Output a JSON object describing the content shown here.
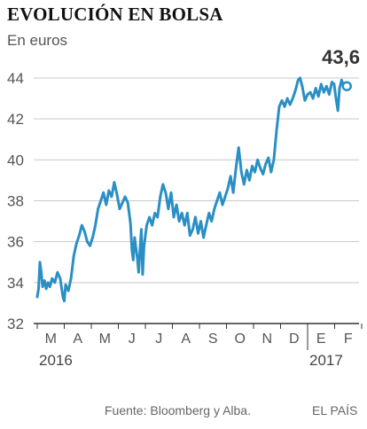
{
  "title": "EVOLUCIÓN EN BOLSA",
  "unit_label": "En euros",
  "footer": {
    "source": "Fuente: Bloomberg y Alba.",
    "brand": "EL PAÍS"
  },
  "colors": {
    "line": "#2a8fc4",
    "grid": "#c9c9c9",
    "axis": "#333333",
    "text": "#555555"
  },
  "chart_data": {
    "type": "line",
    "title": "EVOLUCIÓN EN BOLSA",
    "ylabel": "En euros",
    "ylim": [
      32,
      44
    ],
    "yticks": [
      32,
      34,
      36,
      38,
      40,
      42,
      44
    ],
    "months": [
      "M",
      "A",
      "M",
      "J",
      "J",
      "A",
      "S",
      "O",
      "N",
      "D",
      "E",
      "F"
    ],
    "years": [
      {
        "label": "2016",
        "month_index": 0
      },
      {
        "label": "2017",
        "month_index": 10
      }
    ],
    "last_value_label": "43,6",
    "last_value": 43.6,
    "grid": "horizontal",
    "x_unit": "months since 1 March 2016",
    "series": [
      {
        "points": [
          [
            0.0,
            33.3
          ],
          [
            0.05,
            33.7
          ],
          [
            0.1,
            35.0
          ],
          [
            0.14,
            34.6
          ],
          [
            0.2,
            33.8
          ],
          [
            0.27,
            34.1
          ],
          [
            0.33,
            33.7
          ],
          [
            0.4,
            34.0
          ],
          [
            0.47,
            33.8
          ],
          [
            0.55,
            34.2
          ],
          [
            0.65,
            34.0
          ],
          [
            0.75,
            34.5
          ],
          [
            0.85,
            34.2
          ],
          [
            0.95,
            33.3
          ],
          [
            1.0,
            33.1
          ],
          [
            1.05,
            33.9
          ],
          [
            1.15,
            33.6
          ],
          [
            1.25,
            34.2
          ],
          [
            1.35,
            35.3
          ],
          [
            1.45,
            35.9
          ],
          [
            1.55,
            36.3
          ],
          [
            1.65,
            36.8
          ],
          [
            1.75,
            36.5
          ],
          [
            1.85,
            36.0
          ],
          [
            1.95,
            35.8
          ],
          [
            2.05,
            36.2
          ],
          [
            2.15,
            36.8
          ],
          [
            2.25,
            37.6
          ],
          [
            2.35,
            38.0
          ],
          [
            2.45,
            38.4
          ],
          [
            2.55,
            37.8
          ],
          [
            2.65,
            38.5
          ],
          [
            2.75,
            38.2
          ],
          [
            2.85,
            38.9
          ],
          [
            2.95,
            38.3
          ],
          [
            3.05,
            37.6
          ],
          [
            3.15,
            37.9
          ],
          [
            3.25,
            38.2
          ],
          [
            3.35,
            37.9
          ],
          [
            3.45,
            36.9
          ],
          [
            3.5,
            35.6
          ],
          [
            3.55,
            35.1
          ],
          [
            3.6,
            36.2
          ],
          [
            3.7,
            35.2
          ],
          [
            3.75,
            34.5
          ],
          [
            3.8,
            35.6
          ],
          [
            3.85,
            36.6
          ],
          [
            3.9,
            34.4
          ],
          [
            3.95,
            35.8
          ],
          [
            4.05,
            36.8
          ],
          [
            4.15,
            37.2
          ],
          [
            4.25,
            36.8
          ],
          [
            4.35,
            37.4
          ],
          [
            4.45,
            37.2
          ],
          [
            4.55,
            38.2
          ],
          [
            4.65,
            38.8
          ],
          [
            4.75,
            38.4
          ],
          [
            4.85,
            37.6
          ],
          [
            4.95,
            38.4
          ],
          [
            5.05,
            37.2
          ],
          [
            5.15,
            37.8
          ],
          [
            5.25,
            37.0
          ],
          [
            5.35,
            37.4
          ],
          [
            5.45,
            36.8
          ],
          [
            5.55,
            37.4
          ],
          [
            5.65,
            36.3
          ],
          [
            5.75,
            36.6
          ],
          [
            5.85,
            37.2
          ],
          [
            5.95,
            36.4
          ],
          [
            6.05,
            37.0
          ],
          [
            6.15,
            36.2
          ],
          [
            6.25,
            36.8
          ],
          [
            6.35,
            37.4
          ],
          [
            6.45,
            37.0
          ],
          [
            6.55,
            37.6
          ],
          [
            6.65,
            38.0
          ],
          [
            6.75,
            38.4
          ],
          [
            6.85,
            37.8
          ],
          [
            6.95,
            38.2
          ],
          [
            7.05,
            38.6
          ],
          [
            7.15,
            39.2
          ],
          [
            7.25,
            38.4
          ],
          [
            7.35,
            39.6
          ],
          [
            7.45,
            40.6
          ],
          [
            7.5,
            40.0
          ],
          [
            7.55,
            39.4
          ],
          [
            7.65,
            38.8
          ],
          [
            7.75,
            39.5
          ],
          [
            7.85,
            39.0
          ],
          [
            7.95,
            39.7
          ],
          [
            8.05,
            39.4
          ],
          [
            8.15,
            40.0
          ],
          [
            8.25,
            39.6
          ],
          [
            8.35,
            39.3
          ],
          [
            8.45,
            39.8
          ],
          [
            8.55,
            40.1
          ],
          [
            8.65,
            39.4
          ],
          [
            8.75,
            40.0
          ],
          [
            8.85,
            41.4
          ],
          [
            8.95,
            42.6
          ],
          [
            9.05,
            42.9
          ],
          [
            9.15,
            42.6
          ],
          [
            9.25,
            43.0
          ],
          [
            9.35,
            42.7
          ],
          [
            9.45,
            43.0
          ],
          [
            9.55,
            43.4
          ],
          [
            9.65,
            43.9
          ],
          [
            9.72,
            44.0
          ],
          [
            9.8,
            43.6
          ],
          [
            9.9,
            42.9
          ],
          [
            10.0,
            43.2
          ],
          [
            10.1,
            43.3
          ],
          [
            10.2,
            43.0
          ],
          [
            10.3,
            43.5
          ],
          [
            10.4,
            43.1
          ],
          [
            10.5,
            43.7
          ],
          [
            10.6,
            43.3
          ],
          [
            10.7,
            43.6
          ],
          [
            10.8,
            43.2
          ],
          [
            10.9,
            43.8
          ],
          [
            10.98,
            43.7
          ],
          [
            11.05,
            43.0
          ],
          [
            11.12,
            42.4
          ],
          [
            11.18,
            43.5
          ],
          [
            11.26,
            43.9
          ],
          [
            11.35,
            43.5
          ],
          [
            11.45,
            43.6
          ]
        ]
      }
    ]
  }
}
